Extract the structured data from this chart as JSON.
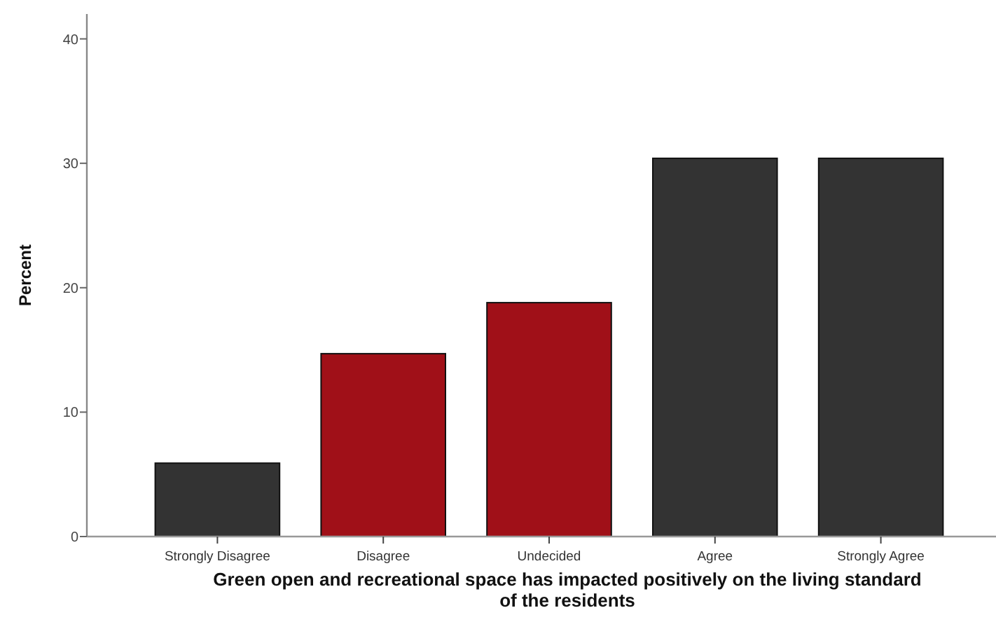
{
  "chart_data": {
    "type": "bar",
    "xlabel": "Green open and recreational space has impacted positively on the living standard of the residents",
    "ylabel": "Percent",
    "categories": [
      "Strongly Disagree",
      "Disagree",
      "Undecided",
      "Agree",
      "Strongly Agree"
    ],
    "values": [
      5.9,
      14.7,
      18.8,
      30.4,
      30.4
    ],
    "colors": [
      "#333333",
      "#a01018",
      "#a01018",
      "#333333",
      "#333333"
    ],
    "ylim": [
      0,
      42
    ],
    "yticks": [
      0,
      10,
      20,
      30,
      40
    ],
    "grid": false
  }
}
